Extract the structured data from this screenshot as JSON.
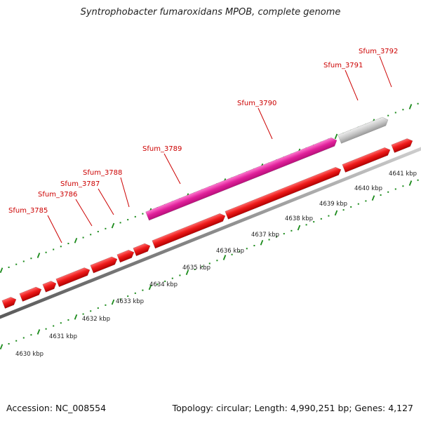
{
  "title": "Syntrophobacter fumaroxidans MPOB, complete genome",
  "footer": {
    "accession": "Accession: NC_008554",
    "summary": "Topology: circular; Length: 4,990,251 bp; Genes: 4,127"
  },
  "colors": {
    "forward_gene": "#e8101a",
    "highlight_gene": "#e0209a",
    "other_gene": "#c8c8c8",
    "backbone": "#8a8a8a",
    "ticks": "#1a8a1a",
    "gene_label": "#cc0000"
  },
  "scale_labels": [
    "4630 kbp",
    "4631 kbp",
    "4632 kbp",
    "4633 kbp",
    "4634 kbp",
    "4635 kbp",
    "4636 kbp",
    "4637 kbp",
    "4638 kbp",
    "4639 kbp",
    "4640 kbp",
    "4641 kbp"
  ],
  "gene_labels": [
    "Sfum_3785",
    "Sfum_3786",
    "Sfum_3787",
    "Sfum_3788",
    "Sfum_3789",
    "Sfum_3790",
    "Sfum_3791",
    "Sfum_3792"
  ],
  "tracks": {
    "upper": [
      {
        "type": "highlight"
      },
      {
        "type": "other"
      }
    ],
    "lower": [
      {
        "type": "forward"
      },
      {
        "type": "forward"
      },
      {
        "type": "forward"
      },
      {
        "type": "forward"
      },
      {
        "type": "forward"
      },
      {
        "type": "forward"
      },
      {
        "type": "forward"
      },
      {
        "type": "forward"
      },
      {
        "type": "forward"
      },
      {
        "type": "forward"
      },
      {
        "type": "forward"
      },
      {
        "type": "forward"
      }
    ]
  }
}
